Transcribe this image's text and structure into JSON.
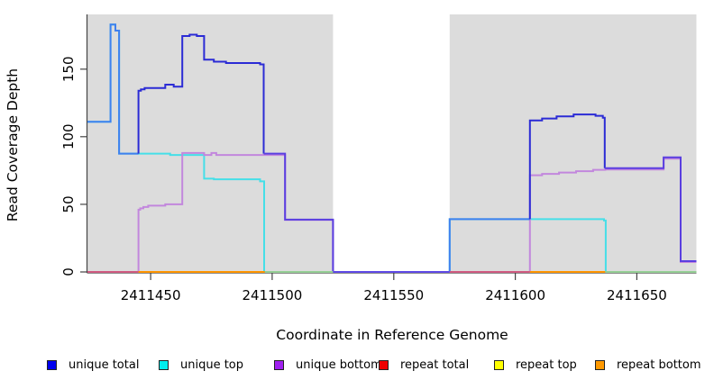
{
  "chart_data": {
    "type": "line",
    "title": "",
    "xlabel": "Coordinate in Reference Genome",
    "ylabel": "Read Coverage Depth",
    "xlim": [
      2411424,
      2411674.5
    ],
    "ylim": [
      0,
      190
    ],
    "x_ticks": [
      2411450,
      2411500,
      2411550,
      2411600,
      2411650
    ],
    "y_ticks": [
      0,
      50,
      100,
      150
    ],
    "grid": "off",
    "legend_position": "bottom",
    "step": true,
    "panel_color": "#dcdcdc",
    "mappable_regions": [
      [
        2411424,
        2411525
      ],
      [
        2411573,
        2411674.5
      ]
    ],
    "series": [
      {
        "name": "unique total",
        "legend_color": "#0000ee",
        "runs": [
          {
            "color": "#4080ee",
            "pts": [
              [
                2411424,
                111
              ],
              [
                2411433.5,
                183
              ],
              [
                2411435.5,
                178.5
              ],
              [
                2411437,
                87.5
              ]
            ],
            "end": 2411445
          },
          {
            "color": "#2b2bd5",
            "pts": [
              [
                2411445,
                87.5
              ],
              [
                2411445,
                134
              ],
              [
                2411446,
                135
              ],
              [
                2411447.5,
                136
              ],
              [
                2411456,
                138.5
              ],
              [
                2411459.5,
                137
              ],
              [
                2411463,
                174.5
              ],
              [
                2411466,
                175.5
              ],
              [
                2411469,
                174.5
              ],
              [
                2411472,
                157
              ],
              [
                2411476,
                155.5
              ],
              [
                2411481,
                154.5
              ],
              [
                2411495,
                153.5
              ],
              [
                2411496.5,
                153.5
              ],
              [
                2411496.5,
                87.5
              ]
            ],
            "end": 2411496.5
          },
          {
            "color": "#5a3fe0",
            "pts": [
              [
                2411496.5,
                87.5
              ],
              [
                2411505.3,
                38.7
              ],
              [
                2411525,
                0
              ]
            ],
            "end": 2411573
          },
          {
            "color": "#4080ee",
            "pts": [
              [
                2411573,
                0
              ],
              [
                2411573,
                39
              ]
            ],
            "end": 2411606
          },
          {
            "color": "#2b2bd5",
            "pts": [
              [
                2411606,
                39
              ],
              [
                2411606,
                112
              ],
              [
                2411611,
                113.5
              ],
              [
                2411617,
                115
              ],
              [
                2411624,
                116.5
              ],
              [
                2411633,
                115.5
              ],
              [
                2411636,
                114
              ],
              [
                2411636.8,
                114
              ],
              [
                2411636.8,
                76.8
              ]
            ],
            "end": 2411636.8
          },
          {
            "color": "#5a3fe0",
            "pts": [
              [
                2411636.8,
                76.8
              ],
              [
                2411661,
                84.8
              ],
              [
                2411668,
                8
              ]
            ],
            "end": 2411674.5
          }
        ]
      },
      {
        "name": "unique top",
        "legend_color": "#00eeee",
        "runs": [
          {
            "color": "#45dfe8",
            "pts": [
              [
                2411424,
                111
              ],
              [
                2411433.5,
                183
              ],
              [
                2411435.5,
                178.5
              ],
              [
                2411437,
                87.5
              ],
              [
                2411458,
                86.5
              ],
              [
                2411472,
                69
              ],
              [
                2411476,
                68.5
              ],
              [
                2411495,
                67
              ],
              [
                2411496.7,
                0
              ],
              [
                2411573,
                39
              ],
              [
                2411636.5,
                38
              ],
              [
                2411637.2,
                0
              ]
            ],
            "end": 2411674.5
          }
        ]
      },
      {
        "name": "unique bottom",
        "legend_color": "#a020f0",
        "runs": [
          {
            "color": "#c287dd",
            "pts": [
              [
                2411424,
                0
              ],
              [
                2411445,
                46
              ],
              [
                2411445.7,
                47
              ],
              [
                2411447,
                48
              ],
              [
                2411449,
                49
              ],
              [
                2411456,
                50
              ],
              [
                2411463,
                88
              ],
              [
                2411472,
                86.5
              ],
              [
                2411475,
                88
              ],
              [
                2411477,
                86.5
              ],
              [
                2411496.5,
                86.5
              ],
              [
                2411505.3,
                38.5
              ],
              [
                2411525,
                0
              ],
              [
                2411606,
                71.5
              ],
              [
                2411611,
                72.5
              ],
              [
                2411618,
                73.5
              ],
              [
                2411625,
                74.5
              ],
              [
                2411632,
                75.5
              ],
              [
                2411637,
                75.8
              ],
              [
                2411661,
                83.8
              ],
              [
                2411668,
                7.3
              ]
            ],
            "end": 2411674.5
          }
        ]
      },
      {
        "name": "repeat total",
        "legend_color": "#ee0000",
        "runs": [
          {
            "color": "#d05a80",
            "pts": [
              [
                2411424,
                0
              ]
            ],
            "end": 2411674.5
          }
        ]
      },
      {
        "name": "repeat top",
        "legend_color": "#ffff00",
        "runs": [
          {
            "color": "#ffff00",
            "pts": [
              [
                2411424,
                0
              ]
            ],
            "end": 2411674.5
          }
        ]
      },
      {
        "name": "repeat bottom",
        "legend_color": "#ff9900",
        "runs": [
          {
            "color": "#ff9500",
            "pts": [
              [
                2411424,
                0
              ]
            ],
            "end": 2411674.5
          }
        ]
      }
    ],
    "baseline_segments": [
      {
        "x1": 2411424,
        "x2": 2411445,
        "color": "#d05a80"
      },
      {
        "x1": 2411445,
        "x2": 2411497,
        "color": "#ff9500"
      },
      {
        "x1": 2411497,
        "x2": 2411525,
        "color": "#95cf95"
      },
      {
        "x1": 2411525,
        "x2": 2411573,
        "color": "#5f4ae6"
      },
      {
        "x1": 2411573,
        "x2": 2411606,
        "color": "#d05a80"
      },
      {
        "x1": 2411606,
        "x2": 2411637,
        "color": "#ff9500"
      },
      {
        "x1": 2411637,
        "x2": 2411674.5,
        "color": "#95cf95"
      }
    ]
  },
  "axes": {
    "y_label": "Read Coverage Depth",
    "x_label": "Coordinate in Reference Genome"
  },
  "legend": {
    "items": [
      {
        "label": "unique total",
        "color": "#0000ee"
      },
      {
        "label": "unique top",
        "color": "#00eeee"
      },
      {
        "label": "unique bottom",
        "color": "#a020f0"
      },
      {
        "label": "repeat total",
        "color": "#ee0000"
      },
      {
        "label": "repeat top",
        "color": "#ffff00"
      },
      {
        "label": "repeat bottom",
        "color": "#ff9900"
      }
    ]
  },
  "colors": {
    "panel": "#dcdcdc",
    "axis": "#444444",
    "text": "#000000"
  }
}
